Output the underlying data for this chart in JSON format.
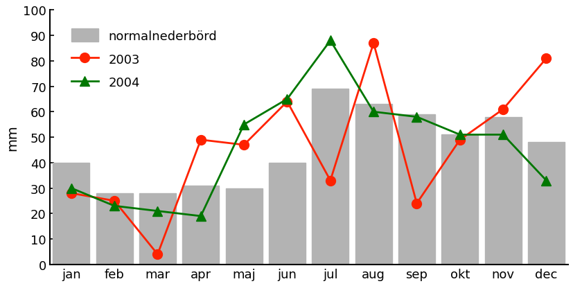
{
  "months": [
    "jan",
    "feb",
    "mar",
    "apr",
    "maj",
    "jun",
    "jul",
    "aug",
    "sep",
    "okt",
    "nov",
    "dec"
  ],
  "normal": [
    40,
    28,
    28,
    31,
    30,
    40,
    69,
    63,
    59,
    51,
    58,
    48
  ],
  "y2003": [
    28,
    25,
    4,
    49,
    47,
    64,
    33,
    87,
    24,
    49,
    61,
    81
  ],
  "y2004": [
    30,
    23,
    21,
    19,
    55,
    65,
    88,
    60,
    58,
    51,
    51,
    33
  ],
  "bar_color": "#b3b3b3",
  "color_2003": "#ff2200",
  "color_2004": "#007700",
  "ylabel": "mm",
  "ylim": [
    0,
    100
  ],
  "yticks": [
    0,
    10,
    20,
    30,
    40,
    50,
    60,
    70,
    80,
    90,
    100
  ],
  "legend_normal": "normalnederbörd",
  "legend_2003": "2003",
  "legend_2004": "2004",
  "bg_color": "#ffffff"
}
